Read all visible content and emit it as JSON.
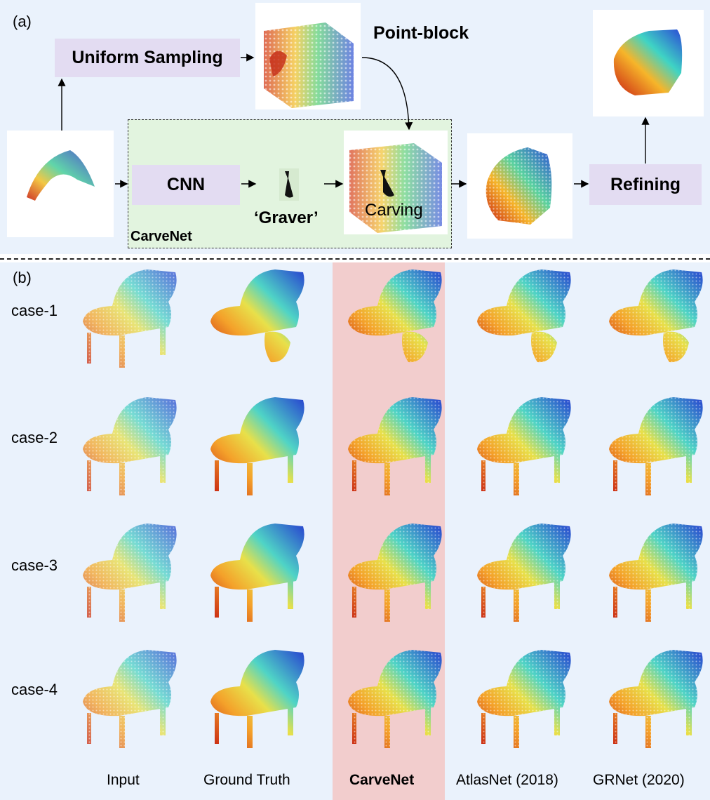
{
  "panel_a": {
    "label": "(a)",
    "uniform_sampling": "Uniform Sampling",
    "point_block": "Point-block",
    "cnn": "CNN",
    "graver": "‘Graver’",
    "carving": "Carving",
    "carvenet_box": "CarveNet",
    "refining": "Refining"
  },
  "panel_b": {
    "label": "(b)",
    "cases": [
      "case-1",
      "case-2",
      "case-3",
      "case-4"
    ],
    "columns": [
      "Input",
      "Ground Truth",
      "CarveNet",
      "AtlasNet (2018)",
      "GRNet (2020)"
    ]
  }
}
